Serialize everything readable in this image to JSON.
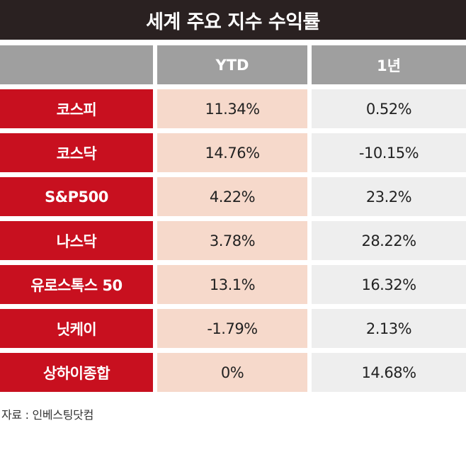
{
  "title": "세계 주요 지수 수익률",
  "chart_data": {
    "type": "table",
    "title": "세계 주요 지수 수익률",
    "columns": [
      "",
      "YTD",
      "1년"
    ],
    "rows": [
      {
        "label": "코스피",
        "ytd": "11.34%",
        "y1": "0.52%"
      },
      {
        "label": "코스닥",
        "ytd": "14.76%",
        "y1": "-10.15%"
      },
      {
        "label": "S&P500",
        "ytd": "4.22%",
        "y1": "23.2%"
      },
      {
        "label": "나스닥",
        "ytd": "3.78%",
        "y1": "28.22%"
      },
      {
        "label": "유로스톡스 50",
        "ytd": "13.1%",
        "y1": "16.32%"
      },
      {
        "label": "닛케이",
        "ytd": "-1.79%",
        "y1": "2.13%"
      },
      {
        "label": "상하이종합",
        "ytd": "0%",
        "y1": "14.68%"
      }
    ]
  },
  "source": "자료 : 인베스팅닷컴",
  "colors": {
    "title_bg": "#2a2121",
    "header_bg": "#9f9f9f",
    "label_bg": "#c8101f",
    "ytd_bg": "#f6d9cb",
    "y1_bg": "#eeeeee"
  }
}
